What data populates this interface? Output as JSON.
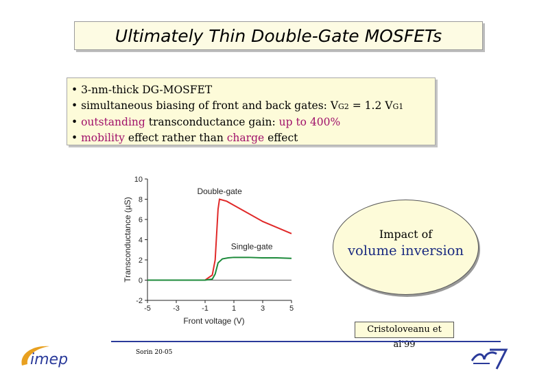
{
  "title": "Ultimately Thin Double-Gate MOSFETs",
  "bullets": {
    "b1": "• 3-nm-thick DG-MOSFET",
    "b2_prefix": "• simultaneous biasing of front and back gates: V",
    "b2_sub1": "G2",
    "b2_mid": " = 1.2 V",
    "b2_sub2": "G1",
    "b3_a": "• ",
    "b3_b": "outstanding",
    "b3_c": " transconductance gain: ",
    "b3_d": "up to 400%",
    "b4_a": "• ",
    "b4_b": "mobility",
    "b4_c": " effect rather than ",
    "b4_d": "charge",
    "b4_e": " effect"
  },
  "callout": {
    "line1": "Impact of",
    "line2": "volume inversion"
  },
  "citation": "Cristoloveanu et al'99",
  "footer": {
    "slide_ref": "Sorin 20-05"
  },
  "logos": {
    "left": "imep",
    "right_icon": "n7-logo-icon"
  },
  "colors": {
    "accent_red": "#a0106a",
    "accent_blue": "#1a2a80",
    "double_gate_curve": "#e02828",
    "single_gate_curve": "#1c8a3a"
  },
  "chart_data": {
    "type": "line",
    "xlabel": "Front voltage (V)",
    "ylabel": "Transconductance (µS)",
    "xlim": [
      -5,
      5
    ],
    "ylim": [
      -2,
      10
    ],
    "x_ticks": [
      "-5",
      "-3",
      "-1",
      "1",
      "3",
      "5"
    ],
    "y_ticks": [
      "-2",
      "0",
      "2",
      "4",
      "6",
      "8",
      "10"
    ],
    "series": [
      {
        "name": "Double-gate",
        "x": [
          -5,
          -1,
          -0.5,
          -0.3,
          -0.2,
          -0.1,
          0.0,
          0.5,
          1,
          2,
          3,
          4,
          5
        ],
        "y": [
          0,
          0,
          0.5,
          2.0,
          4.5,
          7.0,
          8.0,
          7.8,
          7.4,
          6.6,
          5.8,
          5.2,
          4.6
        ]
      },
      {
        "name": "Single-gate",
        "x": [
          -5,
          -1,
          -0.5,
          -0.3,
          -0.1,
          0.2,
          0.6,
          1,
          2,
          3,
          4,
          5
        ],
        "y": [
          0,
          0,
          0.1,
          0.6,
          1.7,
          2.1,
          2.2,
          2.25,
          2.25,
          2.2,
          2.2,
          2.15
        ]
      }
    ]
  }
}
